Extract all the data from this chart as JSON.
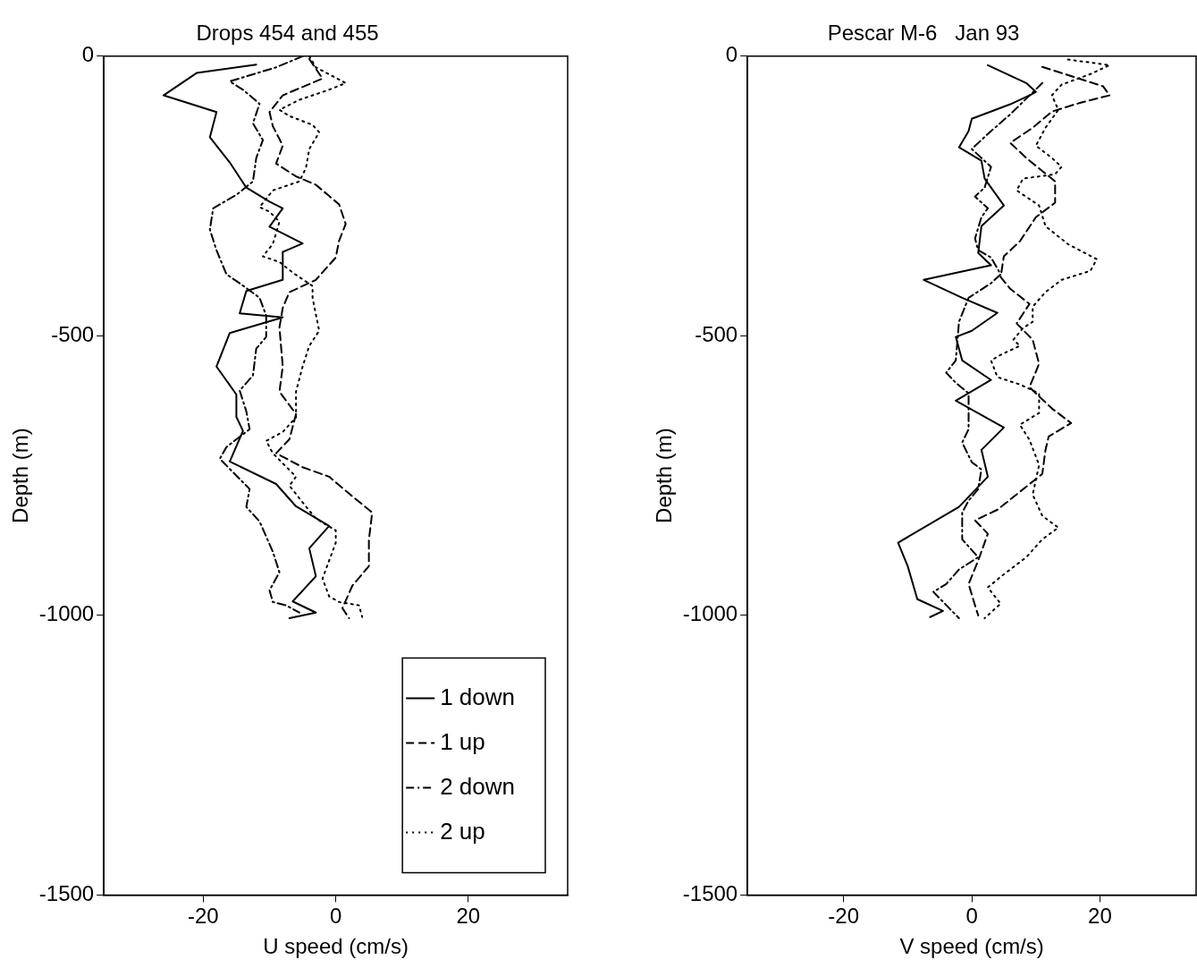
{
  "chart_data": [
    {
      "type": "line",
      "title": "Drops 454 and 455",
      "xlabel": "U speed (cm/s)",
      "ylabel": "Depth (m)",
      "xlim": [
        -35,
        35
      ],
      "xticks": [
        -20,
        0,
        20
      ],
      "ylim": [
        -1500,
        0
      ],
      "yticks": [
        -1500,
        -1000,
        -500,
        0
      ],
      "grid": false,
      "legend": "bottom right",
      "marker": "none",
      "series": [
        {
          "name": "1 down",
          "color": "#000000",
          "line_style": "solid",
          "x": [
            -12,
            -21,
            -26,
            -18,
            -19,
            -16,
            -13.5,
            -10,
            -8,
            -10,
            -5,
            -8,
            -8,
            -13.5,
            -14.5,
            -8,
            -16,
            -18,
            -15,
            -15,
            -14,
            -16,
            -9,
            -6,
            -1,
            -4,
            -3,
            -6.5,
            -3,
            -7
          ],
          "values": [
            -15,
            -30,
            -70,
            -100,
            -145,
            -190,
            -235,
            -260,
            -272,
            -305,
            -335,
            -350,
            -400,
            -420,
            -460,
            -467,
            -495,
            -555,
            -605,
            -645,
            -670,
            -725,
            -765,
            -805,
            -840,
            -880,
            -930,
            -975,
            -995,
            -1005
          ]
        },
        {
          "name": "1 up",
          "color": "#000000",
          "line_style": "dashed",
          "x": [
            -4,
            -2,
            -8,
            -10,
            -9.5,
            -8,
            -9,
            -6,
            -3,
            -1,
            0.5,
            1.5,
            0.5,
            0,
            -3,
            -7,
            -8,
            -8.5,
            -8,
            -8.5,
            -6,
            -7,
            -9,
            -5,
            -1,
            2.5,
            5.5,
            5,
            5,
            2.5,
            1,
            2
          ],
          "values": [
            -5,
            -40,
            -70,
            -100,
            -125,
            -160,
            -192,
            -215,
            -230,
            -250,
            -265,
            -300,
            -330,
            -360,
            -400,
            -422,
            -450,
            -485,
            -555,
            -600,
            -640,
            -685,
            -710,
            -735,
            -752,
            -787,
            -816,
            -865,
            -912,
            -947,
            -987,
            -1005
          ]
        },
        {
          "name": "2 down",
          "color": "#000000",
          "line_style": "dashdot",
          "x": [
            -5,
            -9,
            -16,
            -14,
            -11.5,
            -12.5,
            -11,
            -12,
            -12.5,
            -15,
            -18.5,
            -19,
            -18,
            -16.5,
            -14.5,
            -11.5,
            -10.5,
            -10.5,
            -12,
            -12.5,
            -14.5,
            -13.5,
            -13,
            -16.5,
            -17.5,
            -13,
            -13.5,
            -11.5,
            -10.5,
            -9.5,
            -8.5,
            -10,
            -9.5,
            -7.5,
            -5.5
          ],
          "values": [
            0,
            -20,
            -45,
            -60,
            -85,
            -120,
            -150,
            -182,
            -224,
            -248,
            -272,
            -310,
            -347,
            -390,
            -406,
            -432,
            -464,
            -502,
            -523,
            -571,
            -598,
            -635,
            -667,
            -699,
            -720,
            -774,
            -806,
            -832,
            -859,
            -886,
            -923,
            -955,
            -976,
            -982,
            -995
          ]
        },
        {
          "name": "2 up",
          "color": "#000000",
          "line_style": "dotted",
          "x": [
            -4,
            -3,
            1.5,
            -1,
            -5.5,
            -8.5,
            -7,
            -3.5,
            -2.5,
            -4,
            -4.5,
            -5.5,
            -9.5,
            -11.5,
            -10,
            -8.5,
            -9.5,
            -11,
            -8.5,
            -6.5,
            -3.5,
            -3.5,
            -3,
            -2.5,
            -4,
            -5,
            -6,
            -6,
            -8,
            -10.5,
            -9.5,
            -6,
            -7,
            -5,
            -3,
            0,
            0,
            -1,
            -2,
            -1,
            0.5,
            3.5,
            4
          ],
          "values": [
            0,
            -20,
            -48,
            -60,
            -78,
            -96,
            -107,
            -123,
            -136,
            -166,
            -200,
            -224,
            -240,
            -270,
            -278,
            -296,
            -336,
            -358,
            -368,
            -387,
            -411,
            -432,
            -462,
            -491,
            -518,
            -555,
            -600,
            -646,
            -672,
            -688,
            -710,
            -752,
            -768,
            -798,
            -827,
            -848,
            -870,
            -902,
            -934,
            -966,
            -976,
            -982,
            -1003
          ]
        }
      ]
    },
    {
      "type": "line",
      "title": "Pescar M-6   Jan 93",
      "xlabel": "V speed (cm/s)",
      "ylabel": "Depth (m)",
      "xlim": [
        -35,
        35
      ],
      "xticks": [
        -20,
        0,
        20
      ],
      "ylim": [
        -1500,
        0
      ],
      "yticks": [
        -1500,
        -1000,
        -500,
        0
      ],
      "grid": false,
      "marker": "none",
      "series": [
        {
          "color": "#000000",
          "line_style": "solid",
          "x": [
            2.5,
            8.5,
            10,
            9,
            6,
            0,
            -0.5,
            -2,
            1.5,
            2,
            5,
            1.5,
            1,
            3,
            -7.5,
            -1.5,
            4,
            0,
            -2.5,
            -1.5,
            3,
            -2.5,
            5,
            1.5,
            2.5,
            -2,
            -11.5,
            -10,
            -8.5,
            -4.5,
            -6.5
          ],
          "values": [
            -16,
            -48,
            -64,
            -70,
            -86,
            -112,
            -134,
            -163,
            -187,
            -219,
            -267,
            -304,
            -352,
            -374,
            -400,
            -432,
            -459,
            -491,
            -502,
            -544,
            -579,
            -616,
            -664,
            -704,
            -752,
            -806,
            -870,
            -912,
            -971,
            -992,
            -1003
          ]
        },
        {
          "color": "#000000",
          "line_style": "dashed",
          "x": [
            11,
            20.5,
            21.5,
            17,
            12.5,
            9.5,
            6,
            8.5,
            13,
            13,
            10,
            7.5,
            5,
            4.5,
            6,
            9,
            7,
            9.5,
            10.5,
            9,
            12.5,
            15.5,
            12,
            11.5,
            11,
            7.5,
            4,
            0.5,
            2.5,
            1,
            -0.5,
            0.5,
            1
          ],
          "values": [
            -19,
            -54,
            -70,
            -83,
            -99,
            -128,
            -155,
            -182,
            -224,
            -262,
            -288,
            -331,
            -358,
            -395,
            -416,
            -443,
            -478,
            -507,
            -550,
            -592,
            -630,
            -656,
            -680,
            -704,
            -747,
            -779,
            -811,
            -830,
            -854,
            -902,
            -944,
            -982,
            -1000
          ]
        },
        {
          "color": "#000000",
          "line_style": "dashdot",
          "x": [
            11,
            6,
            2.5,
            0,
            3,
            2,
            0.5,
            2.5,
            1.5,
            0.5,
            1,
            3,
            4.5,
            3,
            -0.5,
            -2,
            -2.5,
            -4,
            -2.5,
            -0.5,
            -0.5,
            -0.5,
            -1.5,
            0,
            1.5,
            1,
            -0.5,
            -1.5,
            -1.5,
            1,
            -2,
            -4,
            -6,
            -2
          ],
          "values": [
            -48,
            -104,
            -139,
            -166,
            -198,
            -235,
            -251,
            -272,
            -288,
            -326,
            -347,
            -360,
            -390,
            -406,
            -432,
            -475,
            -544,
            -566,
            -584,
            -603,
            -635,
            -667,
            -691,
            -726,
            -739,
            -774,
            -795,
            -816,
            -864,
            -896,
            -918,
            -944,
            -958,
            -1005
          ]
        },
        {
          "color": "#000000",
          "line_style": "dotted",
          "x": [
            15,
            21.5,
            18.5,
            14,
            12.5,
            13.5,
            11.5,
            10,
            12.5,
            14,
            13,
            8,
            7,
            10.5,
            11.5,
            15,
            19.5,
            18.5,
            14,
            11.5,
            9.5,
            9.5,
            8,
            6.5,
            7.5,
            4.5,
            3,
            4,
            7.5,
            10.5,
            10.5,
            7.5,
            9,
            10.5,
            9.5,
            11,
            13.5,
            11,
            8.5,
            4.5,
            2.5,
            4.5,
            2
          ],
          "values": [
            -6,
            -16,
            -32,
            -51,
            -70,
            -96,
            -128,
            -160,
            -182,
            -198,
            -211,
            -219,
            -240,
            -267,
            -304,
            -336,
            -363,
            -384,
            -400,
            -422,
            -448,
            -475,
            -486,
            -507,
            -518,
            -534,
            -544,
            -574,
            -587,
            -603,
            -638,
            -659,
            -686,
            -731,
            -784,
            -822,
            -843,
            -864,
            -896,
            -931,
            -950,
            -979,
            -1005
          ]
        }
      ]
    }
  ]
}
